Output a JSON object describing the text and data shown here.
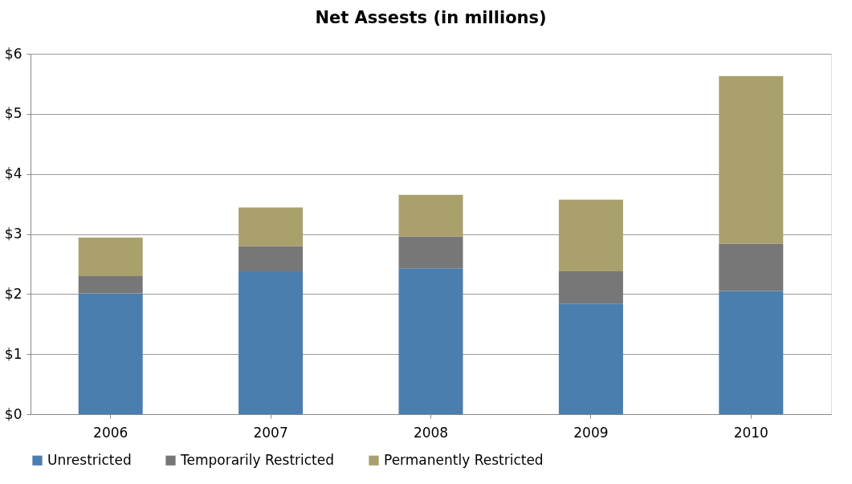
{
  "chart_data": {
    "type": "bar",
    "title": "Net  Assests (in millions)",
    "stacked": true,
    "categories": [
      "2006",
      "2007",
      "2008",
      "2009",
      "2010"
    ],
    "series": [
      {
        "name": "Unrestricted",
        "color": "#4a7eae",
        "values": [
          2.01,
          2.38,
          2.43,
          1.84,
          2.05
        ]
      },
      {
        "name": "Temporarily Restricted",
        "color": "#777777",
        "values": [
          0.29,
          0.42,
          0.53,
          0.54,
          0.79
        ]
      },
      {
        "name": "Permanently Restricted",
        "color": "#a9a06c",
        "values": [
          0.64,
          0.64,
          0.69,
          1.19,
          2.79
        ]
      }
    ],
    "ylim": [
      0,
      6
    ],
    "yticks": [
      {
        "value": 0,
        "label": "$0"
      },
      {
        "value": 1,
        "label": "$1"
      },
      {
        "value": 2,
        "label": "$2"
      },
      {
        "value": 3,
        "label": "$3"
      },
      {
        "value": 4,
        "label": "$4"
      },
      {
        "value": 5,
        "label": "$5"
      },
      {
        "value": 6,
        "label": "$6"
      }
    ],
    "grid": "y",
    "legend": "bottom"
  }
}
